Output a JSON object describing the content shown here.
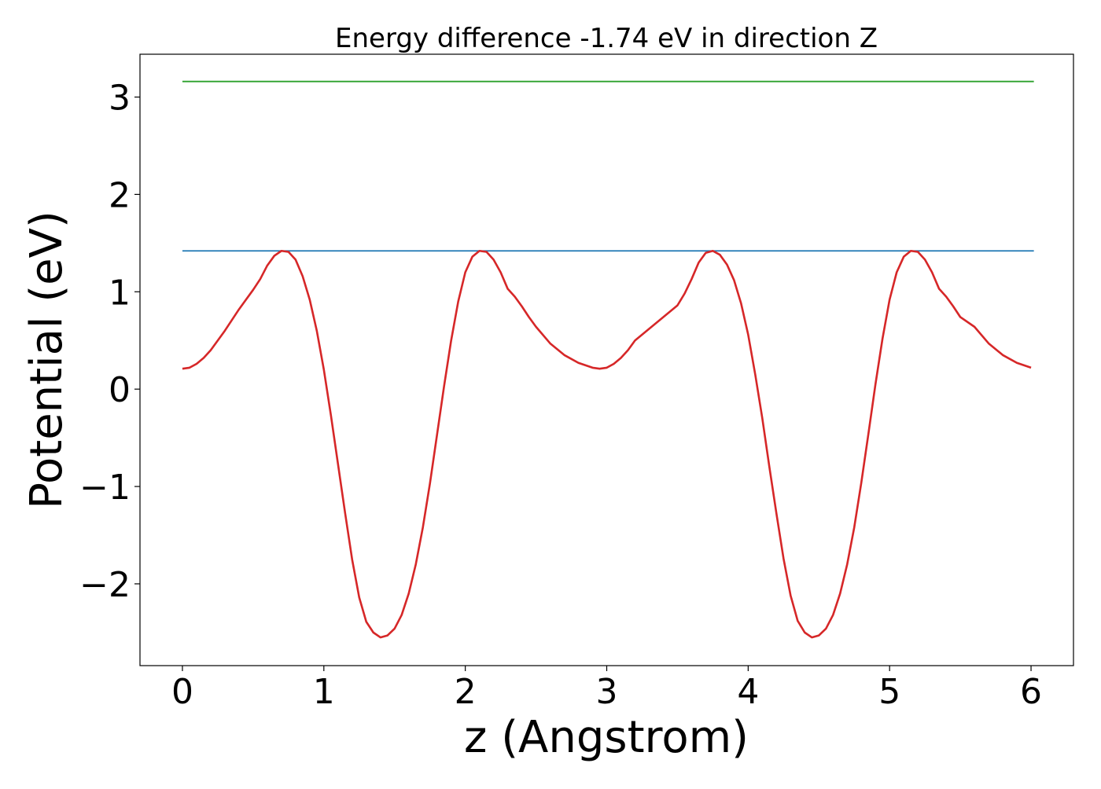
{
  "chart_data": {
    "type": "line",
    "title": "Energy difference -1.74 eV in direction Z",
    "xlabel": "z (Angstrom)",
    "ylabel": "Potential (eV)",
    "xlim": [
      -0.3,
      6.3
    ],
    "ylim": [
      -2.84,
      3.44
    ],
    "xticks": [
      0,
      1,
      2,
      3,
      4,
      5,
      6
    ],
    "xtick_labels": [
      "0",
      "1",
      "2",
      "3",
      "4",
      "5",
      "6"
    ],
    "yticks": [
      -2,
      -1,
      0,
      1,
      2,
      3
    ],
    "ytick_labels": [
      "−2",
      "−1",
      "0",
      "1",
      "2",
      "3"
    ],
    "grid": false,
    "series": [
      {
        "color": "#2ca02c",
        "x": [
          0,
          6.02
        ],
        "y": [
          3.16,
          3.16
        ]
      },
      {
        "color": "#1f77b4",
        "x": [
          0,
          6.02
        ],
        "y": [
          1.42,
          1.42
        ]
      },
      {
        "color": "#d62728",
        "x": [
          0,
          0.05,
          0.1,
          0.15,
          0.2,
          0.3,
          0.4,
          0.5,
          0.55,
          0.6,
          0.65,
          0.7,
          0.75,
          0.8,
          0.85,
          0.9,
          0.95,
          1.0,
          1.05,
          1.1,
          1.15,
          1.2,
          1.25,
          1.3,
          1.35,
          1.4,
          1.45,
          1.5,
          1.55,
          1.6,
          1.65,
          1.7,
          1.75,
          1.8,
          1.85,
          1.9,
          1.95,
          2.0,
          2.05,
          2.1,
          2.15,
          2.2,
          2.25,
          2.3,
          2.35,
          2.4,
          2.45,
          2.5,
          2.6,
          2.7,
          2.8,
          2.9,
          2.95,
          3.0,
          3.05,
          3.1,
          3.15,
          3.2,
          3.3,
          3.4,
          3.5,
          3.55,
          3.6,
          3.65,
          3.7,
          3.75,
          3.8,
          3.85,
          3.9,
          3.95,
          4.0,
          4.05,
          4.1,
          4.15,
          4.2,
          4.25,
          4.3,
          4.35,
          4.4,
          4.45,
          4.5,
          4.55,
          4.6,
          4.65,
          4.7,
          4.75,
          4.8,
          4.85,
          4.9,
          4.95,
          5.0,
          5.05,
          5.1,
          5.15,
          5.2,
          5.25,
          5.3,
          5.35,
          5.4,
          5.45,
          5.5,
          5.6,
          5.7,
          5.8,
          5.9,
          6.0
        ],
        "y": [
          0.21,
          0.22,
          0.26,
          0.32,
          0.4,
          0.6,
          0.82,
          1.02,
          1.13,
          1.27,
          1.37,
          1.42,
          1.41,
          1.33,
          1.16,
          0.92,
          0.6,
          0.2,
          -0.27,
          -0.77,
          -1.27,
          -1.75,
          -2.14,
          -2.39,
          -2.5,
          -2.55,
          -2.53,
          -2.46,
          -2.32,
          -2.1,
          -1.8,
          -1.42,
          -0.97,
          -0.47,
          0.03,
          0.5,
          0.9,
          1.2,
          1.36,
          1.42,
          1.41,
          1.33,
          1.2,
          1.03,
          0.95,
          0.85,
          0.74,
          0.64,
          0.47,
          0.35,
          0.27,
          0.22,
          0.21,
          0.22,
          0.26,
          0.32,
          0.4,
          0.5,
          0.62,
          0.74,
          0.86,
          0.98,
          1.13,
          1.3,
          1.4,
          1.42,
          1.38,
          1.28,
          1.12,
          0.88,
          0.56,
          0.15,
          -0.3,
          -0.8,
          -1.28,
          -1.74,
          -2.12,
          -2.38,
          -2.5,
          -2.55,
          -2.53,
          -2.46,
          -2.32,
          -2.1,
          -1.8,
          -1.42,
          -0.96,
          -0.46,
          0.05,
          0.52,
          0.92,
          1.2,
          1.36,
          1.42,
          1.41,
          1.33,
          1.2,
          1.03,
          0.95,
          0.85,
          0.74,
          0.64,
          0.47,
          0.35,
          0.27,
          0.22
        ]
      }
    ]
  }
}
